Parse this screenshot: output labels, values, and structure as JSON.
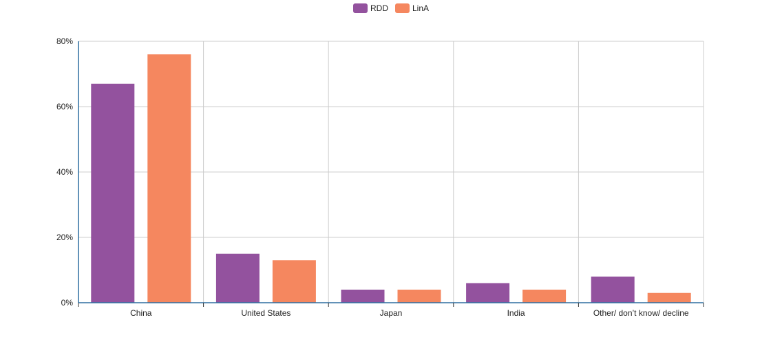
{
  "chart_data": {
    "type": "bar",
    "categories": [
      "China",
      "United States",
      "Japan",
      "India",
      "Other/ don’t know/ decline"
    ],
    "series": [
      {
        "name": "RDD",
        "values": [
          67,
          15,
          4,
          6,
          8
        ]
      },
      {
        "name": "LinA",
        "values": [
          76,
          13,
          4,
          4,
          3
        ]
      }
    ],
    "ylim": [
      0,
      80
    ],
    "yticks": [
      0,
      20,
      40,
      60,
      80
    ],
    "ytick_labels": [
      "0%",
      "20%",
      "40%",
      "60%",
      "80%"
    ],
    "grid": true,
    "legend_position": "top-center",
    "colors": {
      "RDD": "#93529e",
      "LinA": "#f5875f",
      "axis": "#2e6fa0",
      "grid": "#cccccc"
    }
  }
}
